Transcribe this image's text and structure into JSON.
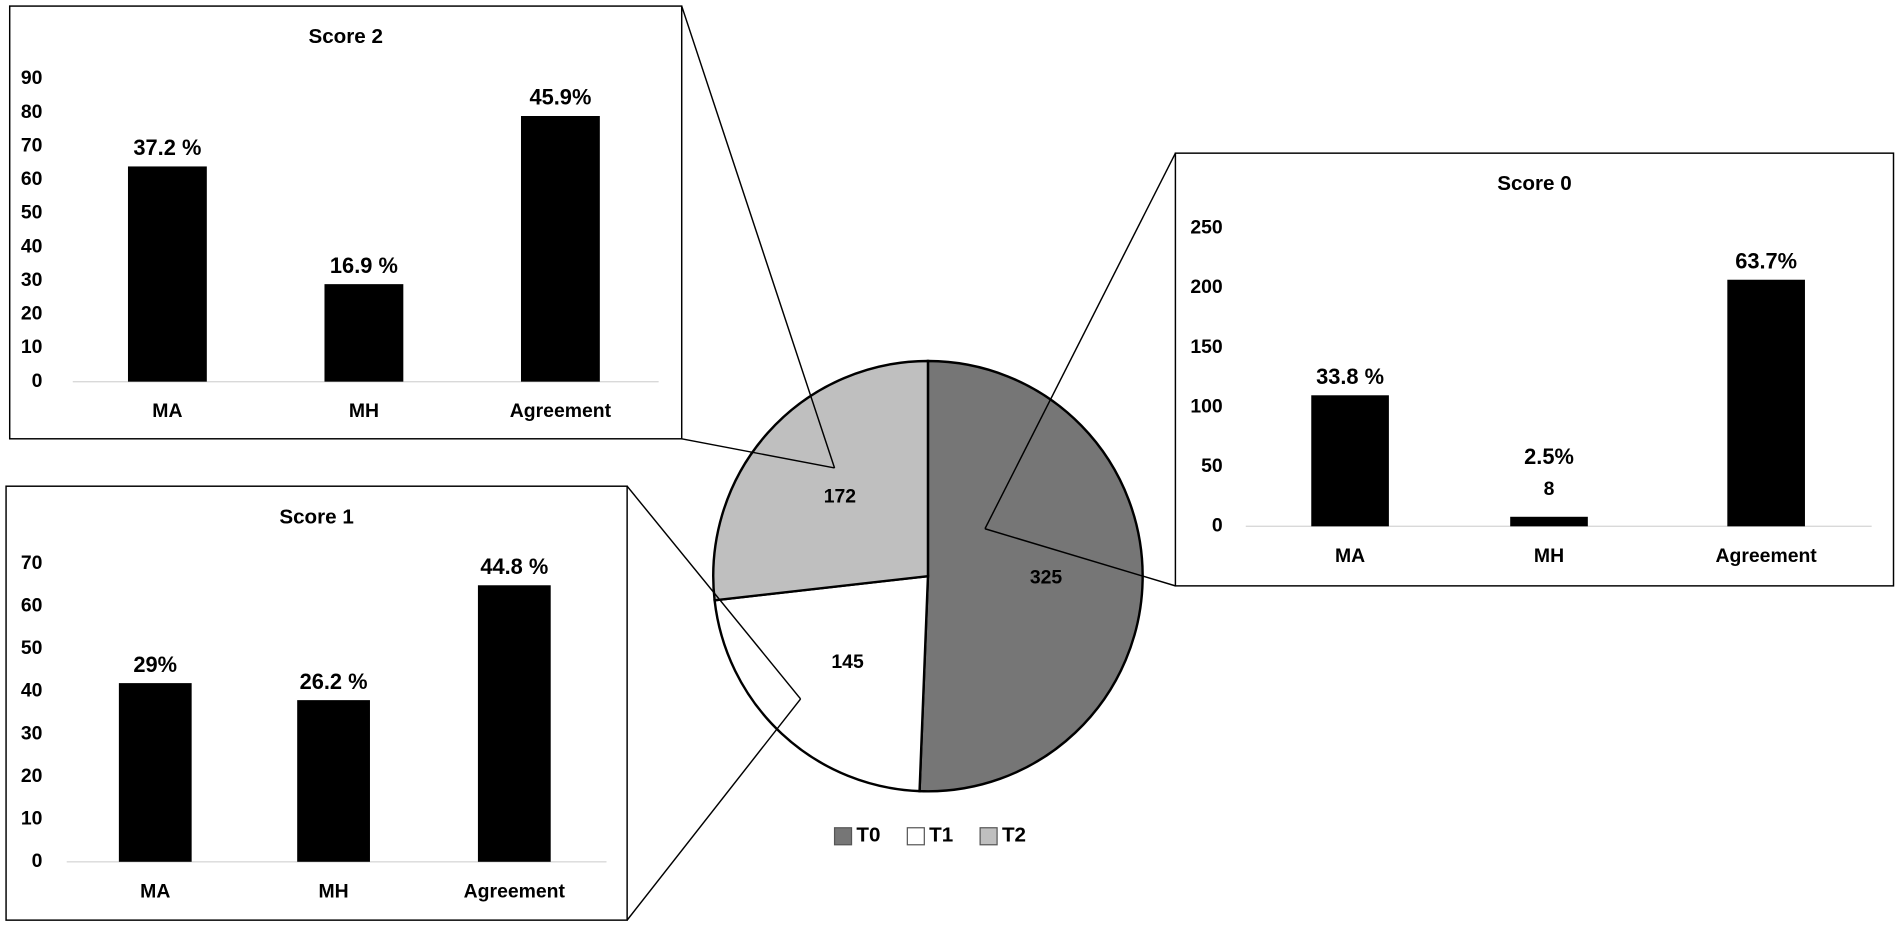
{
  "chart_data": [
    {
      "type": "pie",
      "categories": [
        "T0",
        "T1",
        "T2"
      ],
      "values": [
        325,
        145,
        172
      ],
      "colors": [
        "#767676",
        "#ffffff",
        "#bfbfbf"
      ],
      "legend": "bottom"
    },
    {
      "type": "bar",
      "title": "Score 2",
      "categories": [
        "MA",
        "MH",
        "Agreement"
      ],
      "values": [
        64,
        29,
        79
      ],
      "percent_labels": [
        "37.2 %",
        "16.9 %",
        "45.9%"
      ],
      "color": "#000000",
      "ylim": [
        0,
        90
      ],
      "yticks": [
        0,
        10,
        20,
        30,
        40,
        50,
        60,
        70,
        80,
        90
      ]
    },
    {
      "type": "bar",
      "title": "Score 0",
      "categories": [
        "MA",
        "MH",
        "Agreement"
      ],
      "values": [
        110,
        8,
        207
      ],
      "percent_labels": [
        "33.8 %",
        "2.5%",
        "63.7%"
      ],
      "color": "#000000",
      "ylim": [
        0,
        250
      ],
      "yticks": [
        0,
        50,
        100,
        150,
        200,
        250
      ]
    },
    {
      "type": "bar",
      "title": "Score 1",
      "categories": [
        "MA",
        "MH",
        "Agreement"
      ],
      "values": [
        42,
        38,
        65
      ],
      "percent_labels": [
        "29%",
        "26.2 %",
        "44.8 %"
      ],
      "color": "#000000",
      "ylim": [
        0,
        70
      ],
      "yticks": [
        0,
        10,
        20,
        30,
        40,
        50,
        60,
        70
      ]
    }
  ]
}
